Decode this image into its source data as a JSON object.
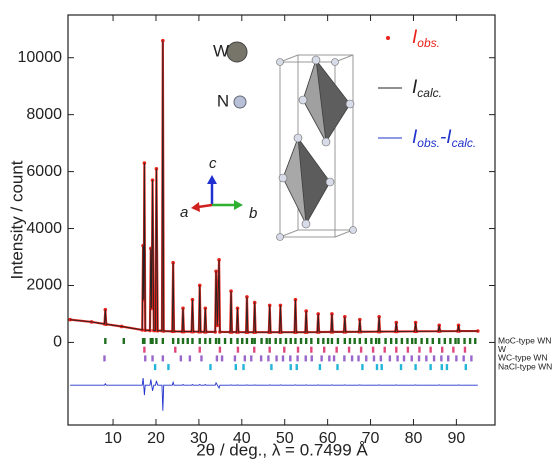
{
  "chart_data": {
    "type": "line",
    "xlabel": "2θ / deg., λ = 0.7499 Å",
    "ylabel": "Intensity / count",
    "xlim": [
      -0.5,
      99
    ],
    "ylim": [
      -2900,
      11500
    ],
    "xticks": [
      10,
      20,
      30,
      40,
      50,
      60,
      70,
      80,
      90
    ],
    "yticks": [
      0,
      2000,
      4000,
      6000,
      8000,
      10000
    ],
    "legend": "upper right",
    "x": [
      0,
      5,
      8.0,
      8.2,
      8.4,
      12,
      16.8,
      17.0,
      17.15,
      17.3,
      17.5,
      18.6,
      18.8,
      19.0,
      19.2,
      19.5,
      19.9,
      20.1,
      20.4,
      21.4,
      21.6,
      21.8,
      23.8,
      24.0,
      24.2,
      26.1,
      26.3,
      26.5,
      28.3,
      28.5,
      28.7,
      30.0,
      30.2,
      30.4,
      31.3,
      31.5,
      31.7,
      33.8,
      34.0,
      34.3,
      34.7,
      34.9,
      37.3,
      37.5,
      37.7,
      38.8,
      39.0,
      39.2,
      41.0,
      41.2,
      41.4,
      42.8,
      43.0,
      43.2,
      46.3,
      46.5,
      46.7,
      48.8,
      49.0,
      49.2,
      52.3,
      52.5,
      52.7,
      54.8,
      55.0,
      55.2,
      57.6,
      57.8,
      58.0,
      60.8,
      61.0,
      61.2,
      63.8,
      64.0,
      64.2,
      67.3,
      67.5,
      67.7,
      71.8,
      72.0,
      72.2,
      75.8,
      76.0,
      76.2,
      80.3,
      80.5,
      80.7,
      85.8,
      86.0,
      86.2,
      90.3,
      90.5,
      90.7,
      95
    ],
    "series": [
      {
        "name_parts": [
          "I",
          "obs."
        ],
        "color": "#e8231c",
        "markers": true,
        "line": true,
        "values": [
          800,
          720,
          650,
          1150,
          640,
          560,
          440,
          3400,
          1500,
          6300,
          430,
          420,
          3300,
          1200,
          5700,
          420,
          420,
          6100,
          410,
          410,
          10600,
          400,
          390,
          2800,
          390,
          380,
          1200,
          380,
          380,
          1500,
          380,
          375,
          2000,
          375,
          370,
          1200,
          370,
          370,
          2500,
          600,
          2900,
          370,
          365,
          1800,
          365,
          365,
          1200,
          365,
          360,
          1600,
          360,
          360,
          1400,
          360,
          360,
          1300,
          360,
          360,
          1300,
          360,
          360,
          1500,
          360,
          360,
          1100,
          360,
          365,
          1000,
          365,
          370,
          1000,
          370,
          370,
          900,
          370,
          375,
          800,
          375,
          380,
          900,
          380,
          385,
          700,
          385,
          390,
          700,
          390,
          395,
          600,
          395,
          400,
          600,
          400,
          400
        ]
      },
      {
        "name_parts": [
          "I",
          "calc."
        ],
        "color": "#222222",
        "markers": false,
        "line": true,
        "values": [
          800,
          720,
          650,
          1150,
          640,
          560,
          440,
          3400,
          1500,
          6300,
          430,
          420,
          3300,
          1200,
          5700,
          420,
          420,
          6100,
          410,
          410,
          10600,
          400,
          390,
          2800,
          390,
          380,
          1200,
          380,
          380,
          1500,
          380,
          375,
          2000,
          375,
          370,
          1200,
          370,
          370,
          2500,
          600,
          2900,
          370,
          365,
          1800,
          365,
          365,
          1200,
          365,
          360,
          1600,
          360,
          360,
          1400,
          360,
          360,
          1300,
          360,
          360,
          1300,
          360,
          360,
          1500,
          360,
          360,
          1100,
          360,
          365,
          1000,
          365,
          370,
          1000,
          370,
          370,
          900,
          370,
          375,
          800,
          375,
          380,
          900,
          380,
          385,
          700,
          385,
          390,
          700,
          390,
          395,
          600,
          395,
          400,
          600,
          400,
          400
        ]
      },
      {
        "name_parts": [
          "I",
          "obs.",
          "-I",
          "calc."
        ],
        "color": "#2233cc",
        "markers": false,
        "line": true,
        "values": [
          -1500,
          -1500,
          -1500,
          -1450,
          -1500,
          -1500,
          -1500,
          -1250,
          -1500,
          -1850,
          -1500,
          -1500,
          -1300,
          -1500,
          -1700,
          -1500,
          -1500,
          -1350,
          -1500,
          -1500,
          -2400,
          -1500,
          -1500,
          -1400,
          -1500,
          -1500,
          -1480,
          -1500,
          -1500,
          -1480,
          -1500,
          -1500,
          -1480,
          -1500,
          -1500,
          -1480,
          -1500,
          -1500,
          -1420,
          -1500,
          -1600,
          -1500,
          -1500,
          -1490,
          -1500,
          -1500,
          -1490,
          -1500,
          -1500,
          -1490,
          -1500,
          -1500,
          -1490,
          -1500,
          -1500,
          -1490,
          -1500,
          -1500,
          -1490,
          -1500,
          -1500,
          -1490,
          -1500,
          -1500,
          -1490,
          -1500,
          -1500,
          -1490,
          -1500,
          -1500,
          -1490,
          -1500,
          -1500,
          -1490,
          -1500,
          -1500,
          -1490,
          -1500,
          -1500,
          -1490,
          -1500,
          -1500,
          -1490,
          -1500,
          -1500,
          -1490,
          -1500,
          -1500,
          -1490,
          -1500,
          -1500,
          -1490,
          -1500,
          -1500
        ]
      }
    ],
    "phases": [
      {
        "name": "MoC-type WN",
        "color": "#1e6e1e",
        "positions": [
          8.2,
          12.5,
          17.0,
          17.3,
          18.8,
          19.2,
          20.1,
          21.6,
          24.0,
          25.2,
          26.3,
          27.4,
          28.5,
          30.2,
          31.5,
          32.6,
          34.0,
          34.7,
          36.1,
          37.5,
          39.0,
          40.1,
          41.2,
          42.4,
          43.0,
          44.6,
          45.8,
          46.5,
          47.9,
          49.0,
          50.3,
          51.4,
          52.5,
          53.8,
          55.0,
          56.2,
          57.8,
          59.0,
          60.1,
          61.0,
          62.4,
          64.0,
          65.2,
          66.3,
          67.5,
          68.9,
          70.2,
          71.3,
          72.0,
          73.5,
          74.8,
          76.0,
          77.3,
          78.6,
          79.7,
          80.5,
          81.9,
          83.2,
          84.5,
          86.0,
          87.3,
          88.6,
          89.8,
          90.5,
          91.9,
          93.2,
          94.4
        ]
      },
      {
        "name": "W",
        "color": "#e0457b",
        "positions": [
          17.3,
          24.5,
          30.2,
          34.9,
          39.1,
          42.9,
          46.5,
          49.9,
          53.1,
          56.2,
          59.2,
          62.1,
          65.0,
          67.8,
          70.6,
          73.3,
          76.0,
          78.7,
          81.4,
          84.0,
          86.7,
          89.3,
          92.0
        ]
      },
      {
        "name": "WC-type WN",
        "color": "#9966cc",
        "positions": [
          8.0,
          17.5,
          19.2,
          21.6,
          25.8,
          27.9,
          30.6,
          34.2,
          35.4,
          38.4,
          40.7,
          42.2,
          44.5,
          46.2,
          48.1,
          49.6,
          51.3,
          53.0,
          54.9,
          56.3,
          58.6,
          60.4,
          61.5,
          63.9,
          65.7,
          67.2,
          69.0,
          70.8,
          72.4,
          74.5,
          76.3,
          77.8,
          79.6,
          81.3,
          83.0,
          84.8,
          86.5,
          88.1,
          90.0,
          91.7,
          93.5
        ]
      },
      {
        "name": "NaCl-type WN",
        "color": "#22b5d8",
        "positions": [
          19.8,
          22.9,
          32.7,
          38.6,
          40.4,
          46.9,
          51.4,
          52.8,
          58.2,
          62.3,
          68.1,
          71.5,
          72.6,
          77.1,
          80.5,
          84.0,
          86.6,
          87.8,
          92.2
        ]
      }
    ],
    "annotations": {
      "w": "W",
      "n": "N",
      "a": "a",
      "b": "b",
      "c": "c"
    }
  }
}
